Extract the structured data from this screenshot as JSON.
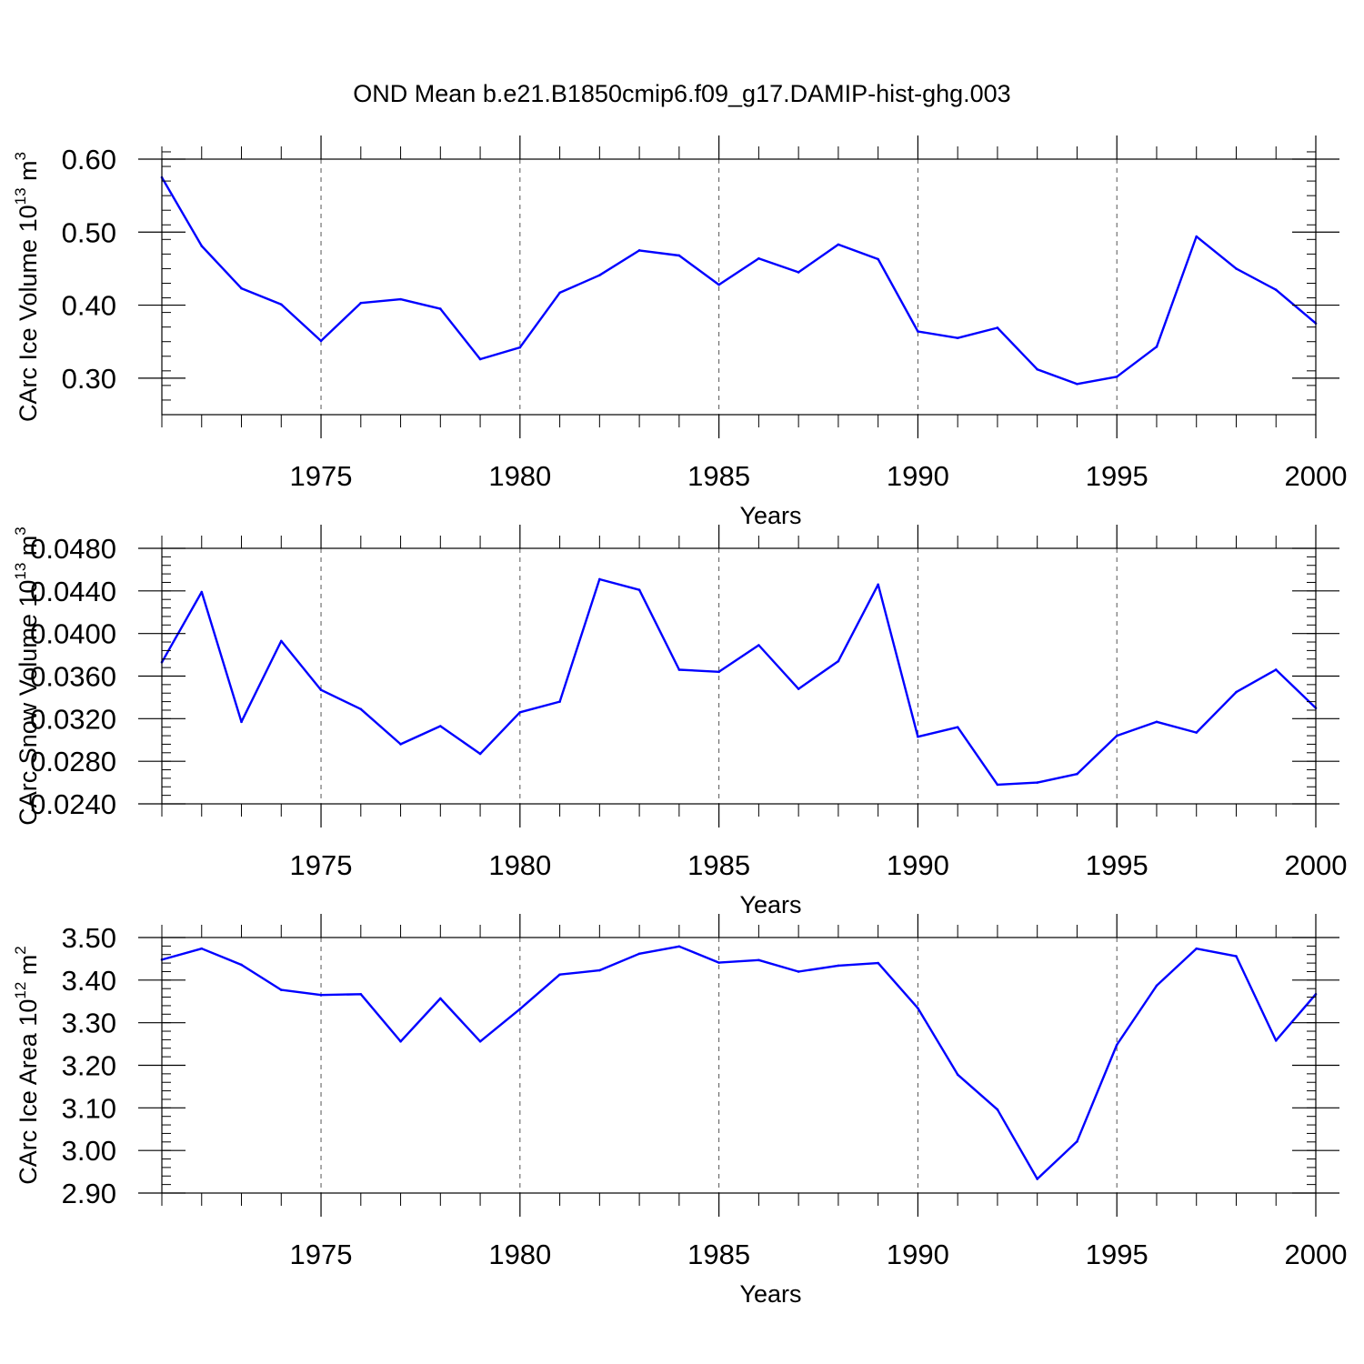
{
  "title": "OND Mean b.e21.B1850cmip6.f09_g17.DAMIP-hist-ghg.003",
  "colors": {
    "line": "#0000ff",
    "axis": "#000000",
    "grid": "#555555"
  },
  "chart_data": [
    {
      "type": "line",
      "ylabel": "CArc Ice Volume 10",
      "ylabel_sup": "13",
      "ylabel_unit": " m",
      "ylabel_unit_sup": "3",
      "xlabel": "Years",
      "xlim": [
        1971,
        2000
      ],
      "ylim": [
        0.25,
        0.6
      ],
      "yticks": [
        0.3,
        0.4,
        0.5,
        0.6
      ],
      "ytick_labels": [
        "0.30",
        "0.40",
        "0.50",
        "0.60"
      ],
      "xticks": [
        1975,
        1980,
        1985,
        1990,
        1995,
        2000
      ],
      "xtick_labels": [
        "1975",
        "1980",
        "1985",
        "1990",
        "1995",
        "2000"
      ],
      "yminor_step": 0.02,
      "x": [
        1971,
        1972,
        1973,
        1974,
        1975,
        1976,
        1977,
        1978,
        1979,
        1980,
        1981,
        1982,
        1983,
        1984,
        1985,
        1986,
        1987,
        1988,
        1989,
        1990,
        1991,
        1992,
        1993,
        1994,
        1995,
        1996,
        1997,
        1998,
        1999,
        2000
      ],
      "values": [
        0.575,
        0.481,
        0.423,
        0.401,
        0.351,
        0.403,
        0.408,
        0.395,
        0.326,
        0.342,
        0.417,
        0.441,
        0.475,
        0.468,
        0.428,
        0.464,
        0.445,
        0.483,
        0.463,
        0.364,
        0.355,
        0.369,
        0.312,
        0.292,
        0.302,
        0.343,
        0.494,
        0.45,
        0.421,
        0.375
      ]
    },
    {
      "type": "line",
      "ylabel": "CArc Snow Volume 10",
      "ylabel_sup": "13",
      "ylabel_unit": " m",
      "ylabel_unit_sup": "3",
      "xlabel": "Years",
      "xlim": [
        1971,
        2000
      ],
      "ylim": [
        0.024,
        0.048
      ],
      "yticks": [
        0.024,
        0.028,
        0.032,
        0.036,
        0.04,
        0.044,
        0.048
      ],
      "ytick_labels": [
        "0.0240",
        "0.0280",
        "0.0320",
        "0.0360",
        "0.0400",
        "0.0440",
        "0.0480"
      ],
      "xticks": [
        1975,
        1980,
        1985,
        1990,
        1995,
        2000
      ],
      "xtick_labels": [
        "1975",
        "1980",
        "1985",
        "1990",
        "1995",
        "2000"
      ],
      "yminor_step": 0.0008,
      "x": [
        1971,
        1972,
        1973,
        1974,
        1975,
        1976,
        1977,
        1978,
        1979,
        1980,
        1981,
        1982,
        1983,
        1984,
        1985,
        1986,
        1987,
        1988,
        1989,
        1990,
        1991,
        1992,
        1993,
        1994,
        1995,
        1996,
        1997,
        1998,
        1999,
        2000
      ],
      "values": [
        0.0373,
        0.0439,
        0.0317,
        0.0393,
        0.0347,
        0.0329,
        0.0296,
        0.0313,
        0.0287,
        0.0326,
        0.0336,
        0.0451,
        0.0441,
        0.0366,
        0.0364,
        0.0389,
        0.0348,
        0.0374,
        0.0446,
        0.0303,
        0.0312,
        0.0258,
        0.026,
        0.0268,
        0.0304,
        0.0317,
        0.0307,
        0.0345,
        0.0366,
        0.033
      ]
    },
    {
      "type": "line",
      "ylabel": "CArc Ice Area 10",
      "ylabel_sup": "12",
      "ylabel_unit": " m",
      "ylabel_unit_sup": "2",
      "xlabel": "Years",
      "xlim": [
        1971,
        2000
      ],
      "ylim": [
        2.9,
        3.5
      ],
      "yticks": [
        2.9,
        3.0,
        3.1,
        3.2,
        3.3,
        3.4,
        3.5
      ],
      "ytick_labels": [
        "2.90",
        "3.00",
        "3.10",
        "3.20",
        "3.30",
        "3.40",
        "3.50"
      ],
      "xticks": [
        1975,
        1980,
        1985,
        1990,
        1995,
        2000
      ],
      "xtick_labels": [
        "1975",
        "1980",
        "1985",
        "1990",
        "1995",
        "2000"
      ],
      "yminor_step": 0.02,
      "x": [
        1971,
        1972,
        1973,
        1974,
        1975,
        1976,
        1977,
        1978,
        1979,
        1980,
        1981,
        1982,
        1983,
        1984,
        1985,
        1986,
        1987,
        1988,
        1989,
        1990,
        1991,
        1992,
        1993,
        1994,
        1995,
        1996,
        1997,
        1998,
        1999,
        2000
      ],
      "values": [
        3.448,
        3.474,
        3.436,
        3.377,
        3.365,
        3.367,
        3.256,
        3.357,
        3.256,
        3.332,
        3.413,
        3.423,
        3.462,
        3.479,
        3.441,
        3.447,
        3.42,
        3.434,
        3.44,
        3.334,
        3.178,
        3.096,
        2.933,
        3.021,
        3.248,
        3.387,
        3.474,
        3.456,
        3.258,
        3.367
      ]
    }
  ]
}
